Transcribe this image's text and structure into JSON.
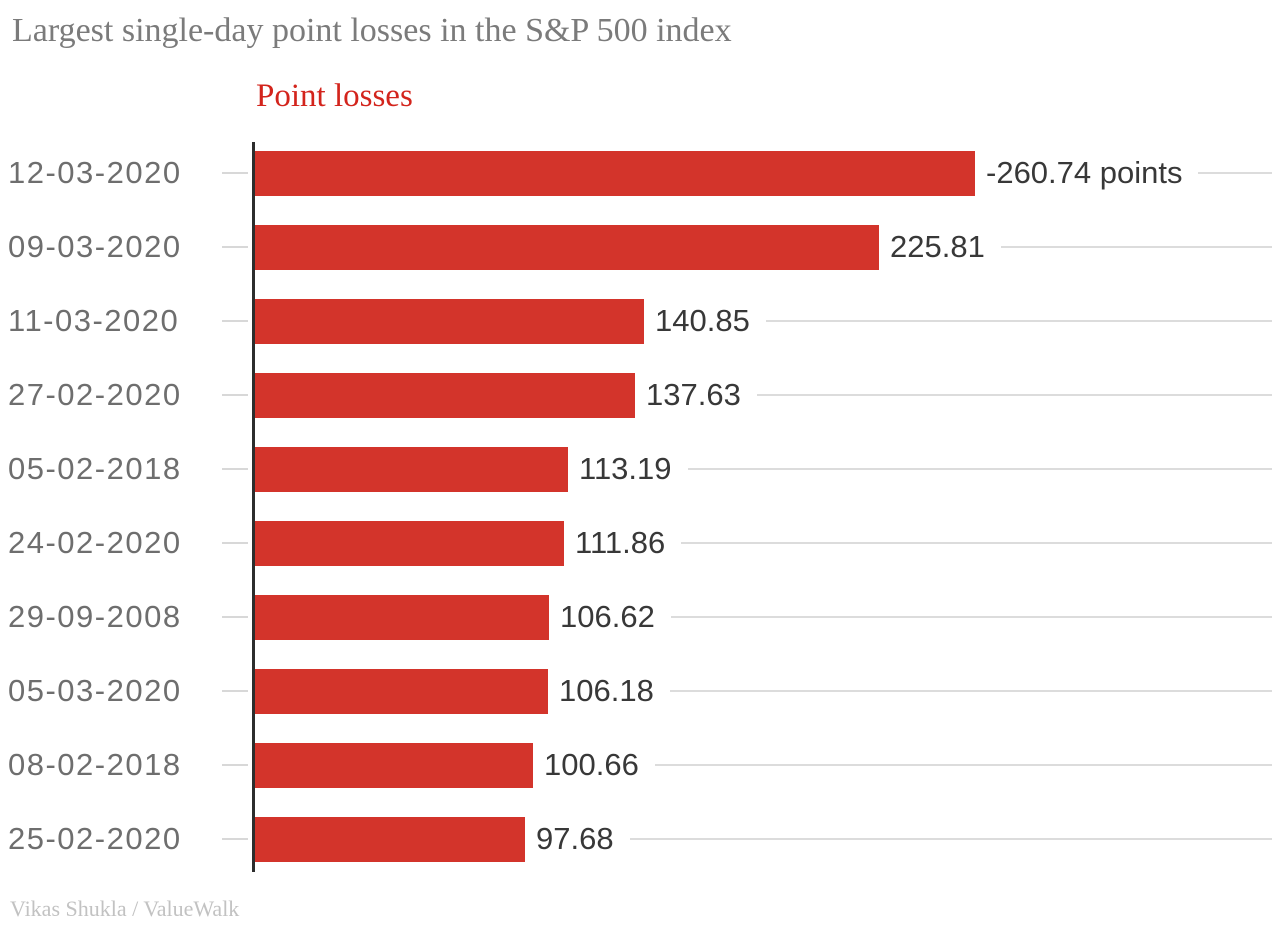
{
  "header": {
    "title": "Largest single-day point losses in the S&P 500 index"
  },
  "legend": {
    "label": "Point losses",
    "color": "#d3241c"
  },
  "chart_data": {
    "type": "bar",
    "orientation": "horizontal",
    "title": "Largest single-day point losses in the S&P 500 index",
    "series_label": "Point losses",
    "categories": [
      "12-03-2020",
      "09-03-2020",
      "11-03-2020",
      "27-02-2020",
      "05-02-2018",
      "24-02-2020",
      "29-09-2008",
      "05-03-2020",
      "08-02-2018",
      "25-02-2020"
    ],
    "values": [
      260.74,
      225.81,
      140.85,
      137.63,
      113.19,
      111.86,
      106.62,
      106.18,
      100.66,
      97.68
    ],
    "value_labels": [
      "-260.74 points",
      "225.81",
      "140.85",
      "137.63",
      "113.19",
      "111.86",
      "106.62",
      "106.18",
      "100.66",
      "97.68"
    ],
    "xlabel": "",
    "ylabel": "",
    "xlim": [
      0,
      260.74
    ],
    "bar_color": "#d3342b",
    "axis_color": "#2d2d2d",
    "grid": false,
    "legend_position": "top-left"
  },
  "footer": {
    "credit": "Vikas Shukla / ValueWalk"
  }
}
